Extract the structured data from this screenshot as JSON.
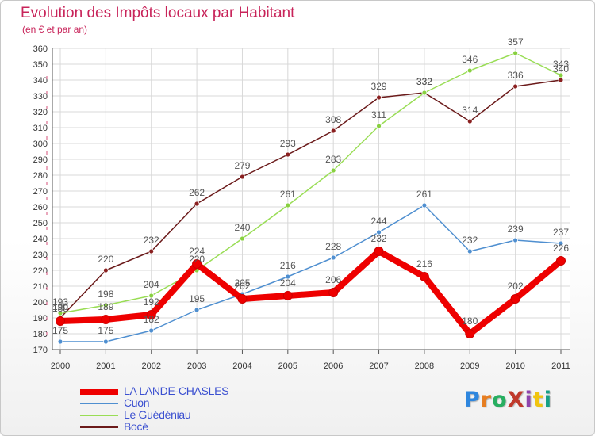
{
  "header": {
    "title": "Evolution des Impôts locaux par Habitant",
    "subtitle": "(en € et par an)"
  },
  "brand": {
    "text": "ProXiti",
    "colors": [
      "#2e86de",
      "#e67e22",
      "#27ae60",
      "#c0392b",
      "#8e44ad",
      "#f1c40f",
      "#16a085"
    ]
  },
  "chart_data": {
    "type": "line",
    "title": "Evolution des Impôts locaux par Habitant",
    "subtitle": "(en € et par an)",
    "xlabel": "",
    "ylabel": "",
    "x": [
      "2000",
      "2001",
      "2002",
      "2003",
      "2004",
      "2005",
      "2006",
      "2007",
      "2008",
      "2009",
      "2010",
      "2011"
    ],
    "ylim": [
      170,
      360
    ],
    "yticks": [
      170,
      180,
      190,
      200,
      210,
      220,
      230,
      240,
      250,
      260,
      270,
      280,
      290,
      300,
      310,
      320,
      330,
      340,
      350,
      360
    ],
    "grid": true,
    "legend_position": "bottom-left",
    "series": [
      {
        "name": "Bocé",
        "color": "#6b1a1a",
        "values": [
          190,
          220,
          232,
          262,
          279,
          293,
          308,
          329,
          332,
          314,
          336,
          340
        ],
        "labels": [
          "190",
          "220",
          "232",
          "262",
          "279",
          "293",
          "308",
          "329",
          "332",
          "314",
          "336",
          "340"
        ]
      },
      {
        "name": "Le Guédéniau",
        "color": "#99dd55",
        "values": [
          193,
          198,
          204,
          220,
          240,
          261,
          283,
          311,
          332,
          346,
          357,
          343
        ],
        "labels": [
          "193",
          "198",
          "204",
          "220",
          "240",
          "261",
          "283",
          "311",
          "332",
          "346",
          "357",
          "343"
        ]
      },
      {
        "name": "Cuon",
        "color": "#4f8fd0",
        "values": [
          175,
          175,
          182,
          195,
          205,
          216,
          228,
          244,
          261,
          232,
          239,
          237
        ],
        "labels": [
          "175",
          "175",
          "182",
          "195",
          "205",
          "216",
          "228",
          "244",
          "261",
          "232",
          "239",
          "237"
        ]
      },
      {
        "name": "LA LANDE-CHASLES",
        "color": "#ee0000",
        "values": [
          188,
          189,
          192,
          224,
          202,
          204,
          206,
          232,
          216,
          180,
          202,
          226
        ],
        "labels": [
          "188",
          "189",
          "192",
          "224",
          "202",
          "204",
          "206",
          "232",
          "216",
          "180",
          "202",
          "226"
        ]
      }
    ],
    "legend_order": [
      "LA LANDE-CHASLES",
      "Cuon",
      "Le Guédéniau",
      "Bocé"
    ]
  }
}
